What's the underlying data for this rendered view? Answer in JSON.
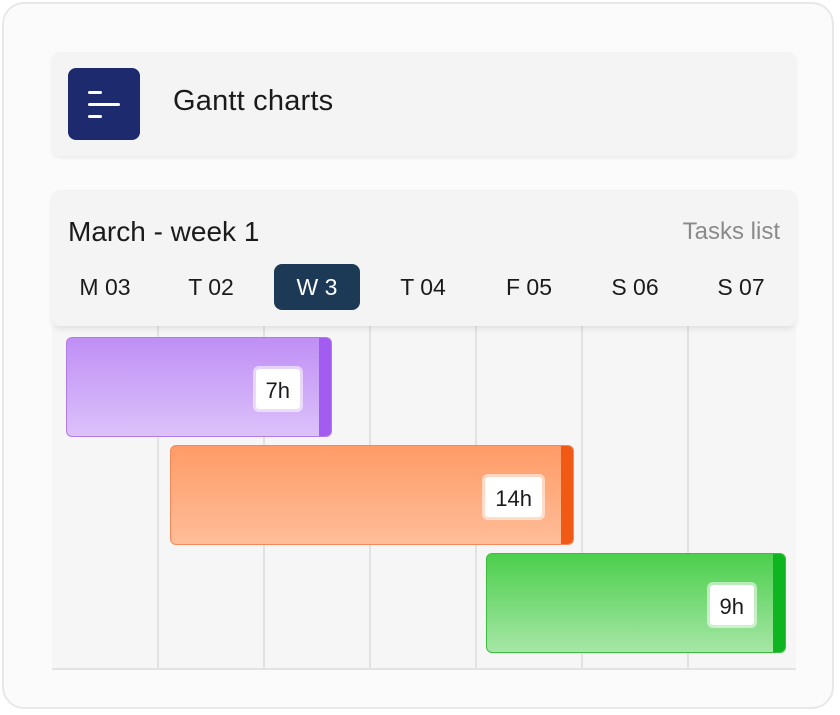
{
  "header": {
    "title": "Gantt charts",
    "icon": "gantt-lines-icon",
    "icon_color": "#1d2a6e"
  },
  "calendar": {
    "title": "March - week 1",
    "tasks_link": "Tasks list",
    "days": [
      "M 03",
      "T 02",
      "W 3",
      "T 04",
      "F 05",
      "S 06",
      "S 07"
    ],
    "active_day": "W 3",
    "active_color": "#1c3a55"
  },
  "tasks": [
    {
      "duration": "7h",
      "color": "purple",
      "accent": "#a35cf0"
    },
    {
      "duration": "14h",
      "color": "orange",
      "accent": "#f05a14"
    },
    {
      "duration": "9h",
      "color": "green",
      "accent": "#0fb520"
    }
  ]
}
